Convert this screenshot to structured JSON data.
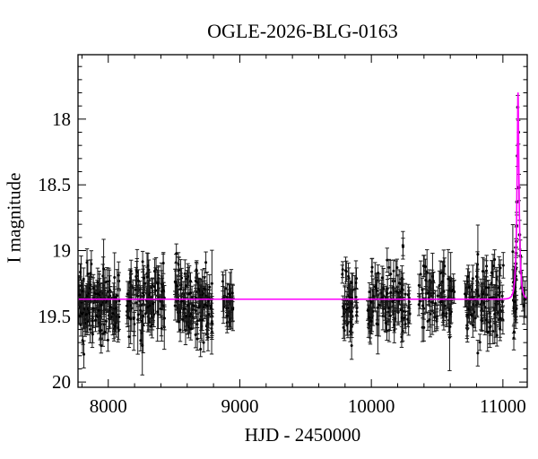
{
  "chart_data": {
    "type": "scatter",
    "title": "OGLE-2026-BLG-0163",
    "xlabel": "HJD - 2450000",
    "ylabel": "I magnitude",
    "xlim": [
      7770,
      11185
    ],
    "ylim": [
      17.51,
      20.04
    ],
    "y_axis_inverted_magnitude": true,
    "grid": false,
    "legend": "none",
    "x_major_ticks": [
      8000,
      9000,
      10000,
      11000
    ],
    "x_tick_labels": [
      "8000",
      "9000",
      "10000",
      "11000"
    ],
    "x_minor_step": 200,
    "y_major_ticks": [
      18,
      18.5,
      19,
      19.5,
      20
    ],
    "y_tick_labels": [
      "18",
      "18.5",
      "19",
      "19.5",
      "20"
    ],
    "y_minor_step": 0.1,
    "colors": {
      "points": "#000000",
      "error_bars": "#1a1a1a",
      "model_curve": "#ff00ff",
      "frame": "#000000",
      "background": "#ffffff"
    },
    "model": {
      "type": "paczynski",
      "t0": 11115,
      "tE": 18,
      "u0": 0.24,
      "baseline_mag": 19.37,
      "peak_mag": 17.81
    },
    "scatter_clip_mags": [
      18.94,
      19.96
    ],
    "seasons": [
      {
        "t_min": 7773,
        "t_max": 8087,
        "n": 150,
        "mean_mag": 19.4,
        "sigma": 0.135,
        "seed": 11
      },
      {
        "t_min": 8142,
        "t_max": 8428,
        "n": 120,
        "mean_mag": 19.38,
        "sigma": 0.13,
        "seed": 22
      },
      {
        "t_min": 8507,
        "t_max": 8793,
        "n": 130,
        "mean_mag": 19.39,
        "sigma": 0.14,
        "seed": 33
      },
      {
        "t_min": 8868,
        "t_max": 8950,
        "n": 26,
        "mean_mag": 19.4,
        "sigma": 0.12,
        "seed": 44
      },
      {
        "t_min": 9779,
        "t_max": 9895,
        "n": 48,
        "mean_mag": 19.38,
        "sigma": 0.13,
        "seed": 55
      },
      {
        "t_min": 9973,
        "t_max": 10300,
        "n": 115,
        "mean_mag": 19.38,
        "sigma": 0.14,
        "seed": 66
      },
      {
        "t_min": 10358,
        "t_max": 10631,
        "n": 80,
        "mean_mag": 19.39,
        "sigma": 0.14,
        "seed": 77
      },
      {
        "t_min": 10705,
        "t_max": 11015,
        "n": 112,
        "mean_mag": 19.38,
        "sigma": 0.14,
        "seed": 88
      },
      {
        "t_min": 11075,
        "t_max": 11103,
        "n": 20,
        "mean_mag": 19.38,
        "sigma": 0.13,
        "seed": 99
      }
    ],
    "event_points": [
      [
        11098,
        19.1,
        0.12
      ],
      [
        11100,
        19.02,
        0.11
      ],
      [
        11102,
        18.93,
        0.11
      ],
      [
        11104,
        18.81,
        0.1
      ],
      [
        11106,
        18.63,
        0.1
      ],
      [
        11110,
        18.28,
        0.08
      ],
      [
        11113,
        17.91,
        0.09
      ],
      [
        11118,
        18.1,
        0.09
      ],
      [
        11122,
        18.52,
        0.1
      ],
      [
        11127,
        18.88,
        0.11
      ],
      [
        11132,
        19.04,
        0.12
      ],
      [
        11138,
        19.17,
        0.12
      ],
      [
        11144,
        19.28,
        0.13
      ],
      [
        11152,
        19.33,
        0.13
      ],
      [
        11160,
        19.42,
        0.14
      ],
      [
        11168,
        19.37,
        0.14
      ]
    ]
  }
}
